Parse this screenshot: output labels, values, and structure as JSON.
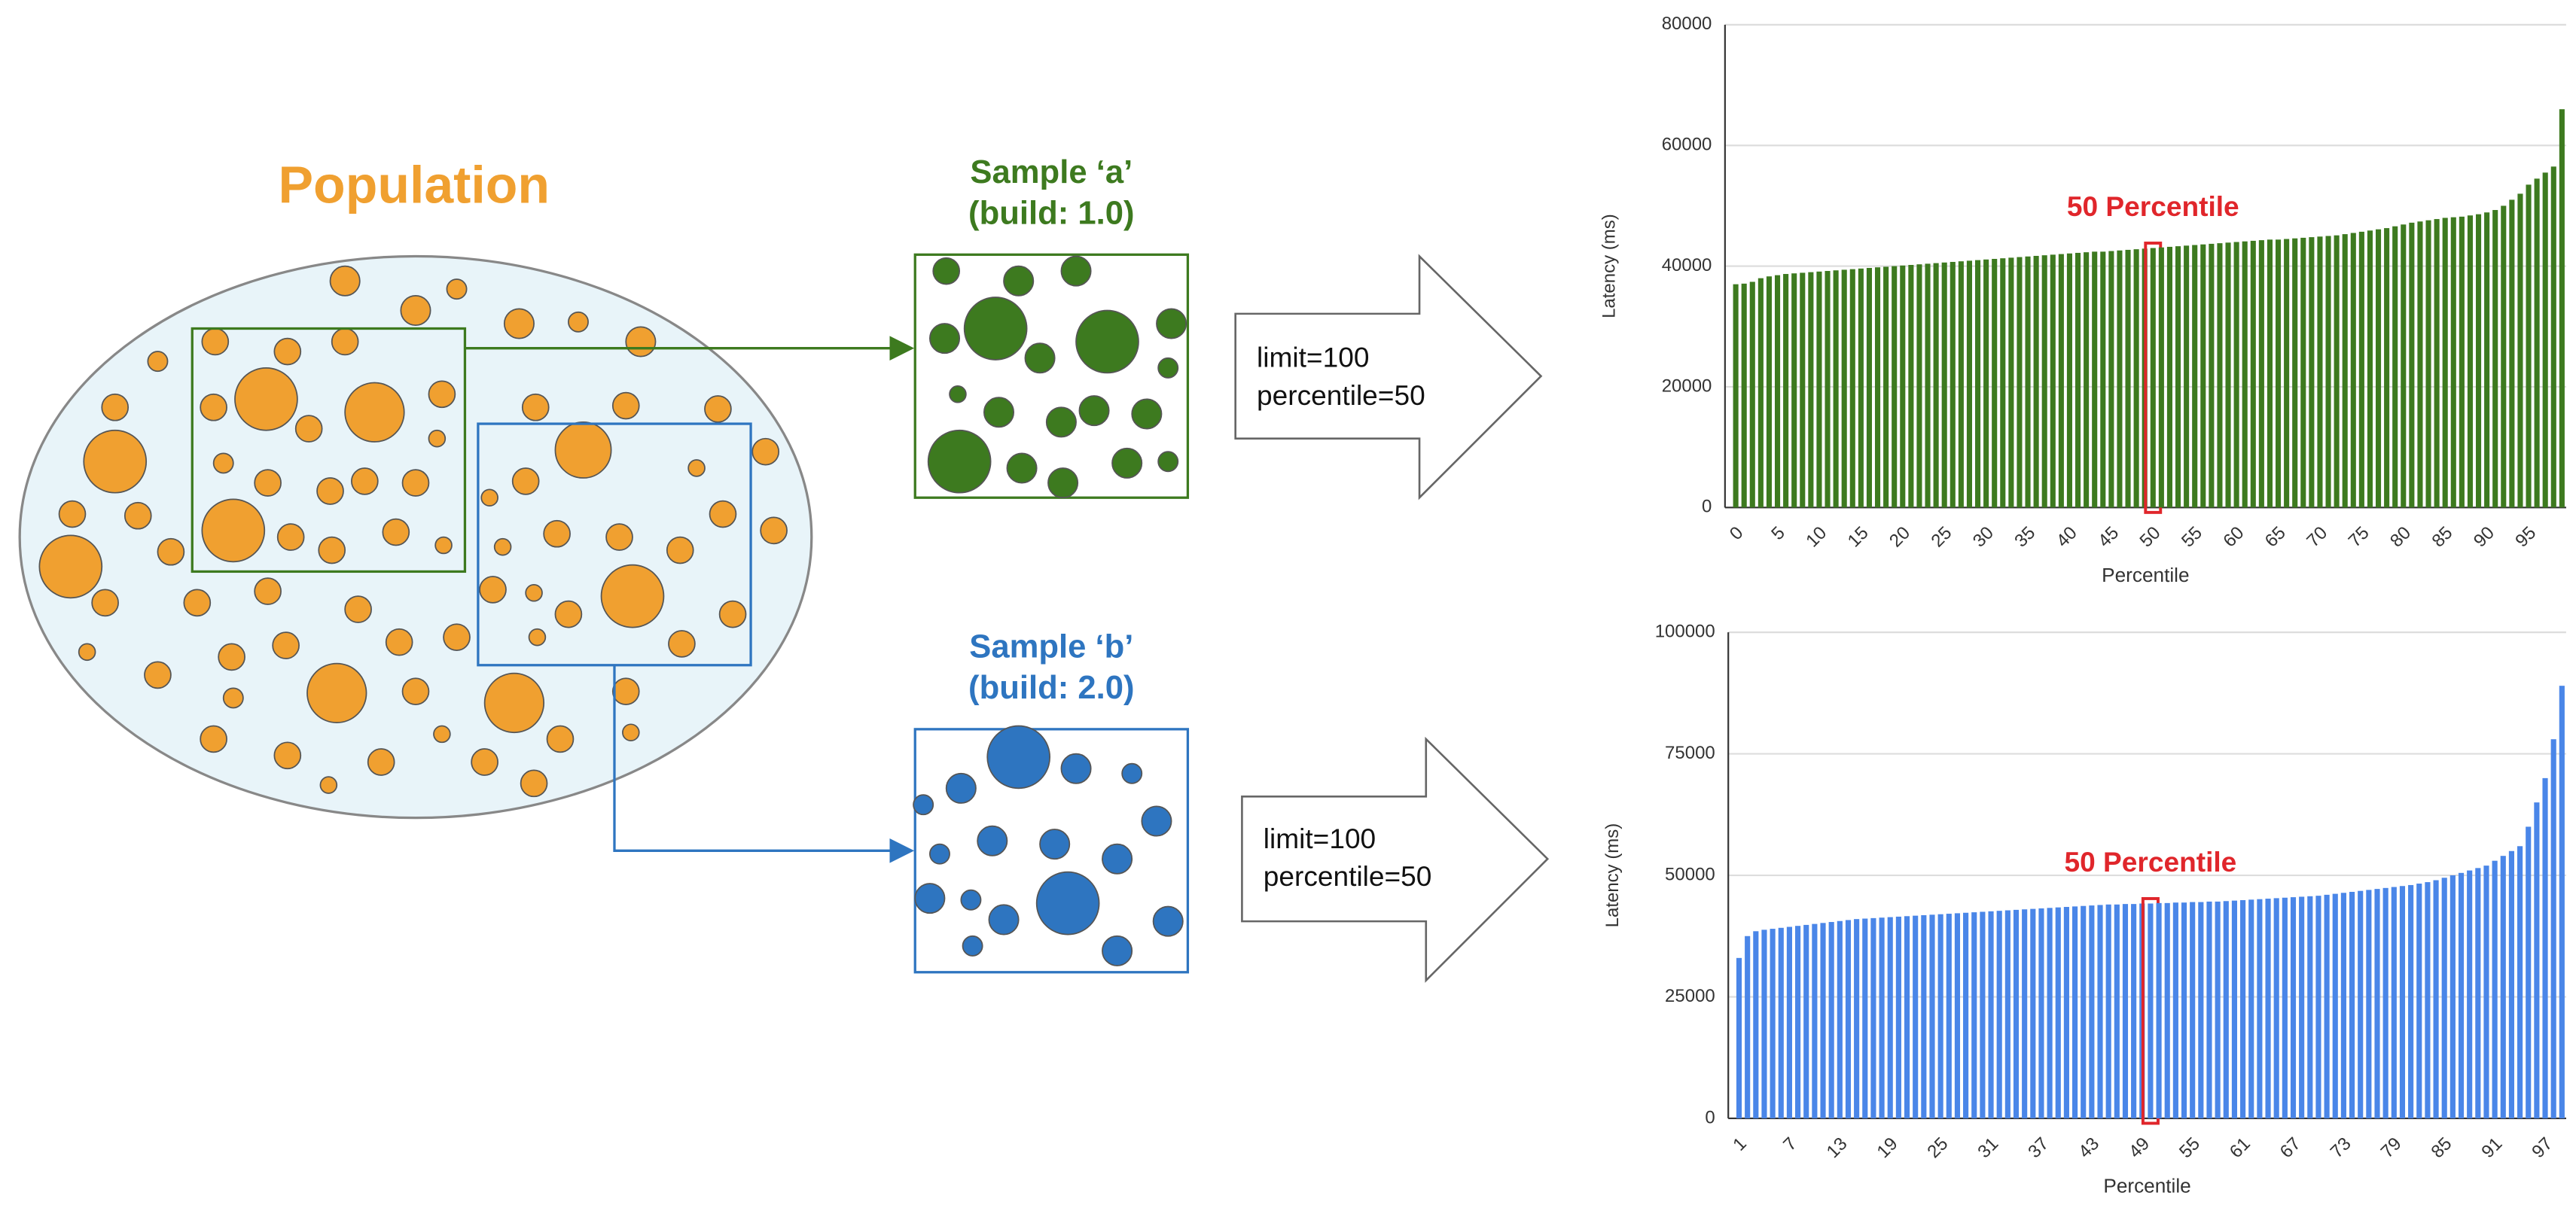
{
  "diagram": {
    "population": "Population",
    "samples": [
      {
        "name": "Sample ‘a’",
        "build": "(build: 1.0)",
        "params": [
          "limit=100",
          "percentile=50"
        ]
      },
      {
        "name": "Sample ‘b’",
        "build": "(build: 2.0)",
        "params": [
          "limit=100",
          "percentile=50"
        ]
      }
    ]
  },
  "chart_data": [
    {
      "type": "bar",
      "annotation": "50 Percentile",
      "x_label": "Percentile",
      "y_label": "Latency (ms)",
      "color": "#3d7a1f",
      "grid": true,
      "ylim": [
        0,
        80000
      ],
      "yticks": [
        0,
        20000,
        40000,
        60000,
        80000
      ],
      "categories": [
        "0",
        null,
        null,
        null,
        null,
        "5",
        null,
        null,
        null,
        null,
        "10",
        null,
        null,
        null,
        null,
        "15",
        null,
        null,
        null,
        null,
        "20",
        null,
        null,
        null,
        null,
        "25",
        null,
        null,
        null,
        null,
        "30",
        null,
        null,
        null,
        null,
        "35",
        null,
        null,
        null,
        null,
        "40",
        null,
        null,
        null,
        null,
        "45",
        null,
        null,
        null,
        null,
        "50",
        null,
        null,
        null,
        null,
        "55",
        null,
        null,
        null,
        null,
        "60",
        null,
        null,
        null,
        null,
        "65",
        null,
        null,
        null,
        null,
        "70",
        null,
        null,
        null,
        null,
        "75",
        null,
        null,
        null,
        null,
        "80",
        null,
        null,
        null,
        null,
        "85",
        null,
        null,
        null,
        null,
        "90",
        null,
        null,
        null,
        null,
        "95",
        null,
        null,
        null,
        null
      ],
      "values": [
        37000,
        37100,
        37400,
        38000,
        38300,
        38500,
        38700,
        38800,
        38900,
        39000,
        39100,
        39200,
        39300,
        39400,
        39500,
        39600,
        39700,
        39800,
        39900,
        40000,
        40100,
        40200,
        40300,
        40400,
        40500,
        40600,
        40700,
        40800,
        40900,
        41000,
        41100,
        41200,
        41300,
        41400,
        41500,
        41600,
        41700,
        41800,
        41900,
        42000,
        42100,
        42200,
        42300,
        42400,
        42400,
        42500,
        42600,
        42700,
        42800,
        42900,
        43000,
        43100,
        43200,
        43300,
        43400,
        43500,
        43600,
        43700,
        43800,
        43900,
        44000,
        44100,
        44200,
        44300,
        44400,
        44400,
        44500,
        44600,
        44700,
        44800,
        44900,
        45000,
        45100,
        45300,
        45500,
        45700,
        45900,
        46100,
        46300,
        46600,
        46900,
        47200,
        47400,
        47600,
        47800,
        48000,
        48100,
        48200,
        48400,
        48600,
        48900,
        49300,
        50000,
        51000,
        52000,
        53500,
        54500,
        55500,
        56500,
        66000
      ]
    },
    {
      "type": "bar",
      "annotation": "50 Percentile",
      "x_label": "Percentile",
      "y_label": "Latency (ms)",
      "color": "#4a86e8",
      "grid": true,
      "ylim": [
        0,
        100000
      ],
      "yticks": [
        0,
        25000,
        50000,
        75000,
        100000
      ],
      "categories": [
        "1",
        null,
        null,
        null,
        null,
        null,
        "7",
        null,
        null,
        null,
        null,
        null,
        "13",
        null,
        null,
        null,
        null,
        null,
        "19",
        null,
        null,
        null,
        null,
        null,
        "25",
        null,
        null,
        null,
        null,
        null,
        "31",
        null,
        null,
        null,
        null,
        null,
        "37",
        null,
        null,
        null,
        null,
        null,
        "43",
        null,
        null,
        null,
        null,
        null,
        "49",
        null,
        null,
        null,
        null,
        null,
        "55",
        null,
        null,
        null,
        null,
        null,
        "61",
        null,
        null,
        null,
        null,
        null,
        "67",
        null,
        null,
        null,
        null,
        null,
        "73",
        null,
        null,
        null,
        null,
        null,
        "79",
        null,
        null,
        null,
        null,
        null,
        "85",
        null,
        null,
        null,
        null,
        null,
        "91",
        null,
        null,
        null,
        null,
        null,
        "97",
        null,
        null
      ],
      "values": [
        33000,
        37500,
        38500,
        38800,
        39000,
        39200,
        39400,
        39600,
        39800,
        40000,
        40200,
        40400,
        40600,
        40800,
        41000,
        41100,
        41200,
        41300,
        41400,
        41500,
        41600,
        41700,
        41800,
        41900,
        42000,
        42100,
        42200,
        42300,
        42400,
        42500,
        42600,
        42700,
        42800,
        42900,
        43000,
        43100,
        43200,
        43300,
        43400,
        43500,
        43600,
        43700,
        43800,
        43900,
        44000,
        44000,
        44100,
        44100,
        44200,
        44200,
        44300,
        44300,
        44400,
        44400,
        44500,
        44500,
        44600,
        44600,
        44700,
        44800,
        44900,
        45000,
        45100,
        45200,
        45300,
        45400,
        45500,
        45600,
        45700,
        45800,
        46000,
        46200,
        46400,
        46600,
        46800,
        47000,
        47200,
        47400,
        47600,
        47800,
        48000,
        48300,
        48600,
        49000,
        49500,
        50000,
        50500,
        51000,
        51500,
        52000,
        53000,
        54000,
        55000,
        56000,
        60000,
        65000,
        70000,
        78000,
        89000
      ]
    }
  ]
}
